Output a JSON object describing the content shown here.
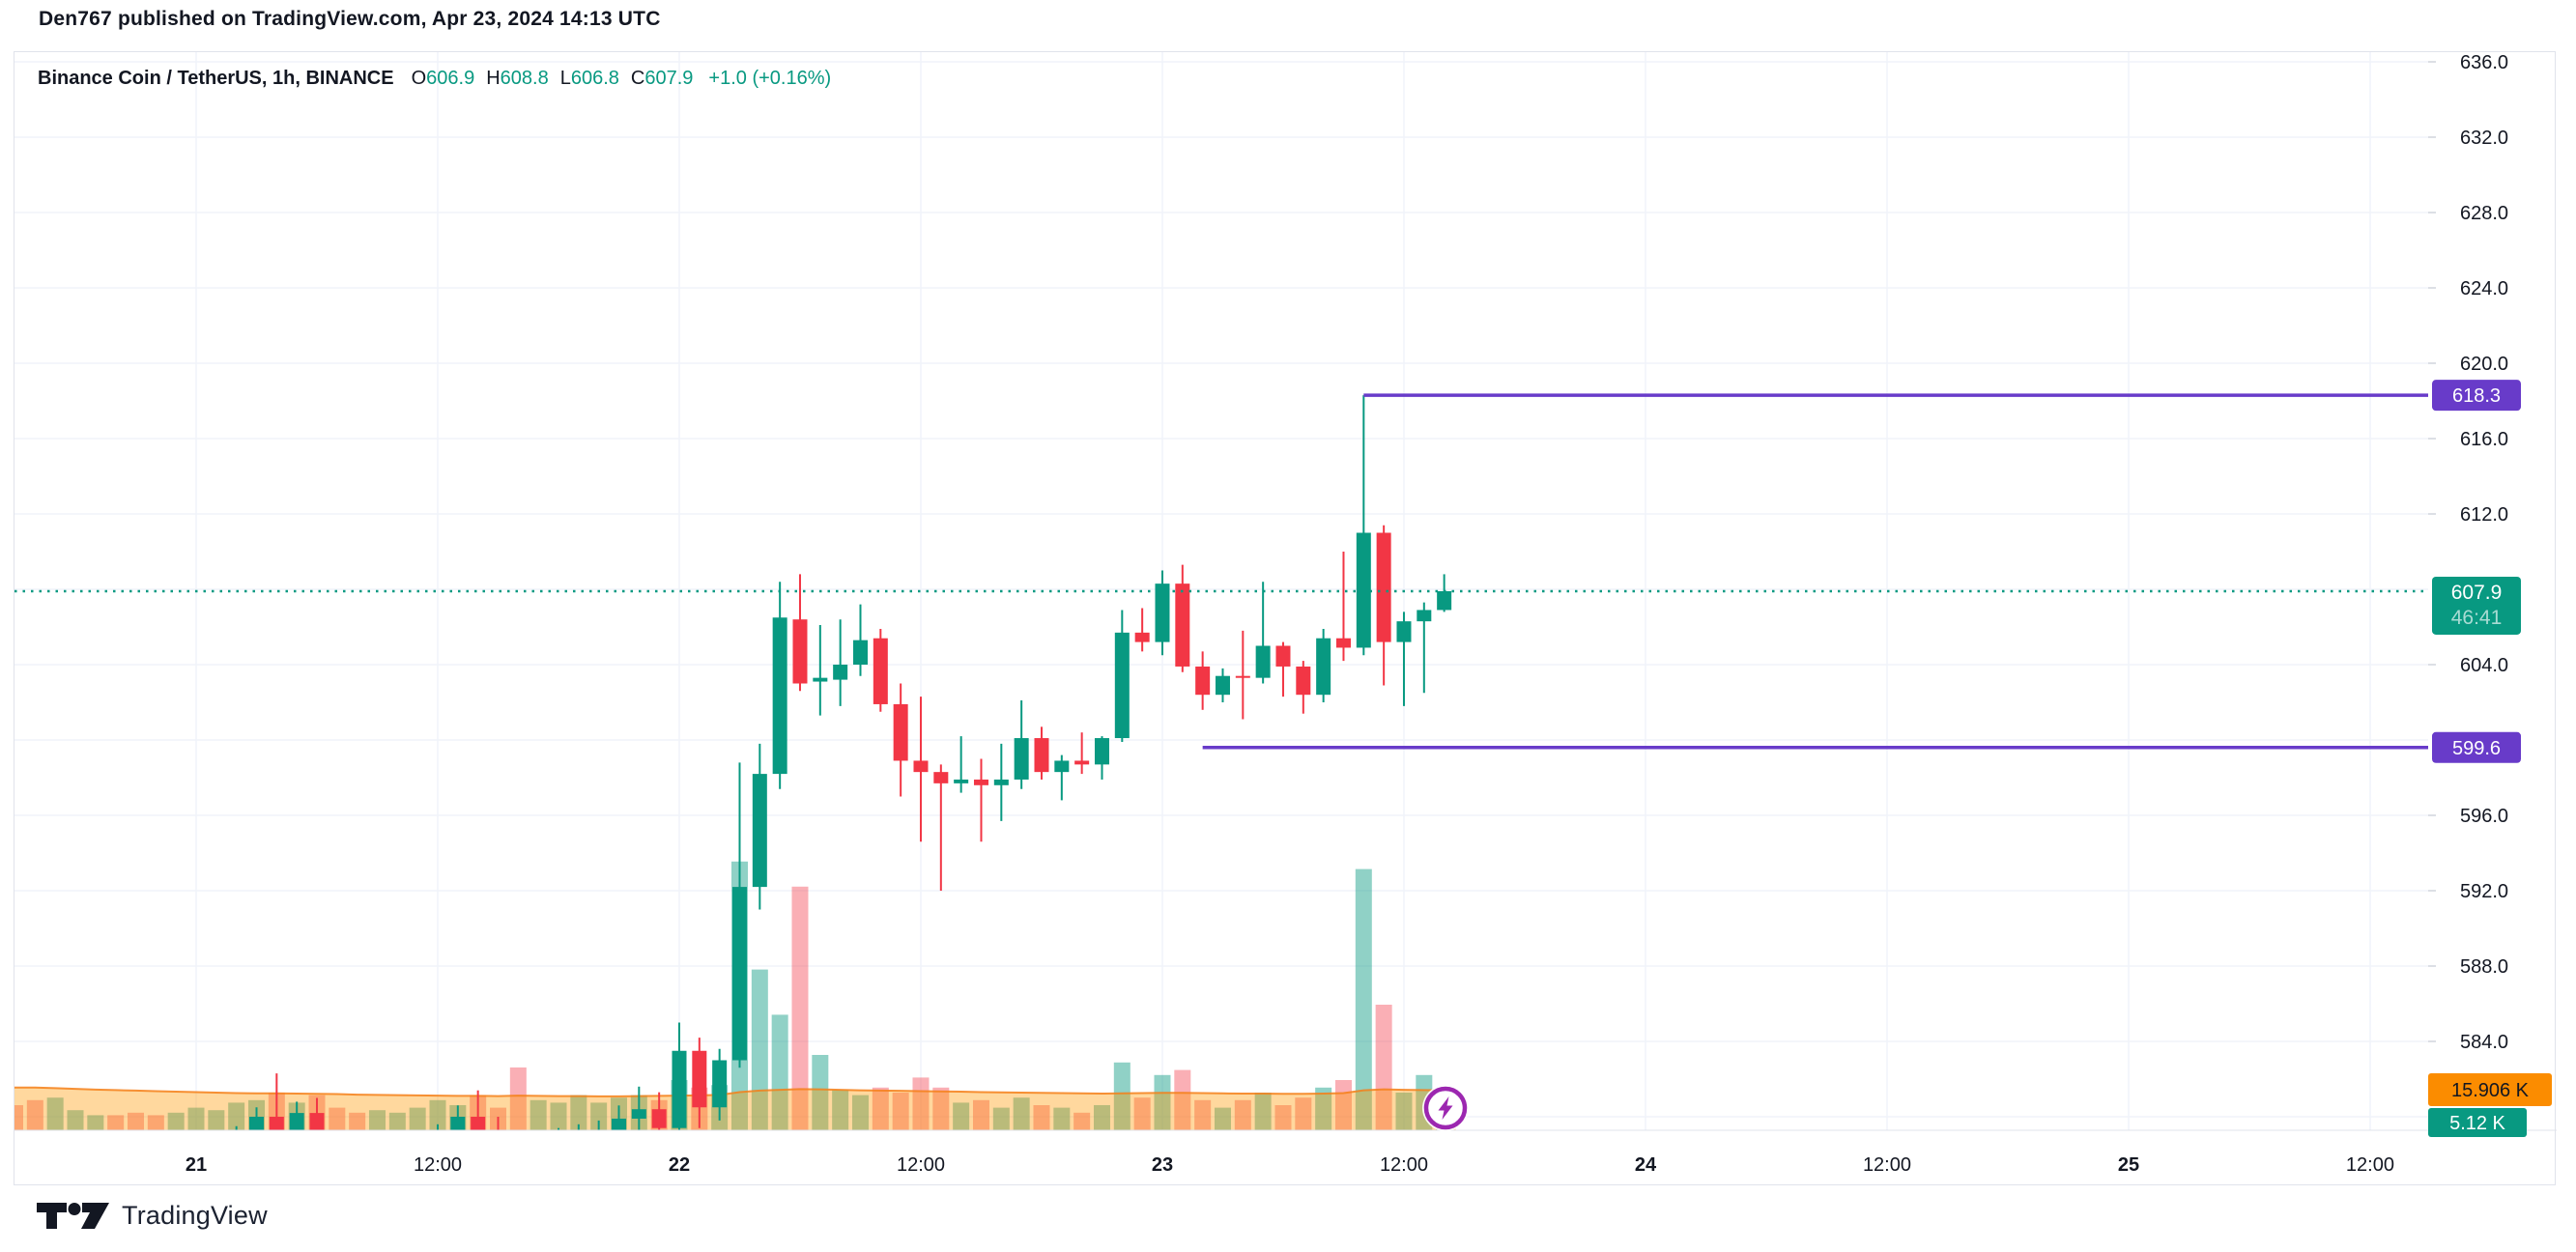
{
  "header": {
    "attribution": "Den767 published on TradingView.com, Apr 23, 2024 14:13 UTC"
  },
  "footer": {
    "brand": "TradingView"
  },
  "legend": {
    "symbol": "Binance Coin / TetherUS, 1h, BINANCE",
    "ohlc": [
      {
        "label": "O",
        "value": "606.9"
      },
      {
        "label": "H",
        "value": "608.8"
      },
      {
        "label": "L",
        "value": "606.8"
      },
      {
        "label": "C",
        "value": "607.9"
      }
    ],
    "change": "+1.0 (+0.16%)"
  },
  "colors": {
    "up": "#089981",
    "down": "#F23645",
    "volume_up": "rgba(8,153,129,0.45)",
    "volume_down": "rgba(242,54,69,0.40)",
    "volume_ma_line": "#F57F17",
    "volume_ma_area": "rgba(255,152,0,0.38)",
    "level_purple": "#683BC9",
    "badge_last_price": "#089981",
    "badge_volume_ma": "#FB8C00",
    "badge_volume": "#089981",
    "grid": "#F0F3FA",
    "border": "#E0E3EB",
    "text": "#131722",
    "button_ring": "#9C27B0"
  },
  "chart_data": {
    "type": "candlestick",
    "title": "Binance Coin / TetherUS",
    "interval": "1h",
    "exchange": "BINANCE",
    "price_axis_labels": [
      "636.0",
      "632.0",
      "628.0",
      "624.0",
      "620.0",
      "616.0",
      "612.0",
      "604.0",
      "596.0",
      "592.0",
      "588.0",
      "584.0"
    ],
    "price_axis_values": [
      636.0,
      632.0,
      628.0,
      624.0,
      620.0,
      616.0,
      612.0,
      604.0,
      596.0,
      592.0,
      588.0,
      584.0
    ],
    "grid_prices": [
      636,
      632,
      628,
      624,
      620,
      616,
      612,
      608,
      604,
      600,
      596,
      592,
      588,
      584,
      580
    ],
    "time_ticks": [
      {
        "text": "21",
        "candle_index": 9,
        "major": true
      },
      {
        "text": "12:00",
        "candle_index": 21,
        "major": false
      },
      {
        "text": "22",
        "candle_index": 33,
        "major": true
      },
      {
        "text": "12:00",
        "candle_index": 45,
        "major": false
      },
      {
        "text": "23",
        "candle_index": 57,
        "major": true
      },
      {
        "text": "12:00",
        "candle_index": 69,
        "major": false
      },
      {
        "text": "24",
        "candle_index": 81,
        "major": true
      },
      {
        "text": "12:00",
        "candle_index": 93,
        "major": false
      },
      {
        "text": "25",
        "candle_index": 105,
        "major": true
      },
      {
        "text": "12:00",
        "candle_index": 117,
        "major": false
      }
    ],
    "levels": [
      {
        "price": 618.3,
        "label": "618.3",
        "start_candle_index": 67
      },
      {
        "price": 599.6,
        "label": "599.6",
        "start_candle_index": 59
      }
    ],
    "last_price": {
      "value": 607.9,
      "label": "607.9",
      "countdown": "46:41"
    },
    "volume_badges": {
      "ma_label": "15.906 K",
      "ma_value": 15.906,
      "last_label": "5.12 K",
      "last_value": 5.12
    },
    "candles": [
      [
        "Apr 20 15:00",
        577.5,
        578.2,
        576.0,
        576.8,
        10
      ],
      [
        "Apr 20 16:00",
        576.8,
        577.5,
        575.5,
        576.2,
        12
      ],
      [
        "Apr 20 17:00",
        576.2,
        577.0,
        575.0,
        576.5,
        13
      ],
      [
        "Apr 20 18:00",
        576.5,
        578.0,
        576.0,
        577.2,
        8
      ],
      [
        "Apr 20 19:00",
        577.2,
        578.5,
        576.5,
        577.8,
        6
      ],
      [
        "Apr 20 20:00",
        577.8,
        578.3,
        576.8,
        577.0,
        6
      ],
      [
        "Apr 20 21:00",
        577.0,
        577.8,
        575.8,
        576.4,
        7
      ],
      [
        "Apr 20 22:00",
        576.4,
        577.2,
        575.2,
        575.8,
        6
      ],
      [
        "Apr 20 23:00",
        575.8,
        577.0,
        575.0,
        576.6,
        7
      ],
      [
        "Apr 21 00:00",
        576.6,
        578.0,
        576.0,
        577.4,
        9
      ],
      [
        "Apr 21 01:00",
        577.4,
        578.8,
        576.8,
        578.2,
        8
      ],
      [
        "Apr 21 02:00",
        578.2,
        579.5,
        577.5,
        579.0,
        11
      ],
      [
        "Apr 21 03:00",
        579.0,
        580.5,
        577.5,
        580.0,
        12
      ],
      [
        "Apr 21 04:00",
        580.0,
        582.3,
        578.0,
        578.6,
        15
      ],
      [
        "Apr 21 05:00",
        578.6,
        580.8,
        577.8,
        580.2,
        11
      ],
      [
        "Apr 21 06:00",
        580.2,
        581.0,
        577.5,
        578.0,
        14
      ],
      [
        "Apr 21 07:00",
        578.0,
        579.0,
        576.5,
        577.0,
        9
      ],
      [
        "Apr 21 08:00",
        577.0,
        578.0,
        575.8,
        576.5,
        7
      ],
      [
        "Apr 21 09:00",
        576.5,
        577.5,
        575.5,
        577.0,
        8
      ],
      [
        "Apr 21 10:00",
        577.0,
        578.2,
        576.2,
        577.8,
        7
      ],
      [
        "Apr 21 11:00",
        577.8,
        579.0,
        576.8,
        578.4,
        9
      ],
      [
        "Apr 21 12:00",
        578.4,
        579.6,
        577.4,
        579.0,
        12
      ],
      [
        "Apr 21 13:00",
        579.0,
        580.6,
        578.2,
        580.0,
        10
      ],
      [
        "Apr 21 14:00",
        580.0,
        581.4,
        578.4,
        578.9,
        14
      ],
      [
        "Apr 21 15:00",
        578.9,
        580.0,
        577.5,
        578.3,
        9
      ],
      [
        "Apr 21 16:00",
        578.3,
        579.2,
        577.0,
        577.6,
        25
      ],
      [
        "Apr 21 17:00",
        577.6,
        578.6,
        576.6,
        578.0,
        12
      ],
      [
        "Apr 21 18:00",
        578.0,
        579.4,
        577.2,
        578.8,
        11
      ],
      [
        "Apr 21 19:00",
        578.8,
        579.6,
        577.8,
        579.0,
        14
      ],
      [
        "Apr 21 20:00",
        579.0,
        579.8,
        577.8,
        579.2,
        11
      ],
      [
        "Apr 21 21:00",
        579.2,
        580.6,
        578.4,
        579.9,
        13
      ],
      [
        "Apr 21 22:00",
        579.9,
        581.6,
        578.8,
        580.4,
        14
      ],
      [
        "Apr 21 23:00",
        580.4,
        581.3,
        578.6,
        579.4,
        12
      ],
      [
        "Apr 22 00:00",
        579.4,
        585.0,
        579.0,
        583.5,
        20
      ],
      [
        "Apr 22 01:00",
        583.5,
        584.2,
        579.4,
        580.5,
        17
      ],
      [
        "Apr 22 02:00",
        580.5,
        583.6,
        579.8,
        583.0,
        18
      ],
      [
        "Apr 22 03:00",
        583.0,
        598.8,
        582.6,
        592.2,
        107
      ],
      [
        "Apr 22 04:00",
        592.2,
        599.8,
        591.0,
        598.2,
        64
      ],
      [
        "Apr 22 05:00",
        598.2,
        608.4,
        597.4,
        606.5,
        46
      ],
      [
        "Apr 22 06:00",
        606.4,
        608.8,
        602.6,
        603.0,
        97
      ],
      [
        "Apr 22 07:00",
        603.1,
        606.1,
        601.3,
        603.3,
        30
      ],
      [
        "Apr 22 08:00",
        603.2,
        606.4,
        601.8,
        604.0,
        16
      ],
      [
        "Apr 22 09:00",
        604.0,
        607.2,
        603.4,
        605.3,
        14
      ],
      [
        "Apr 22 10:00",
        605.4,
        605.9,
        601.5,
        601.9,
        17
      ],
      [
        "Apr 22 11:00",
        601.9,
        603.0,
        597.0,
        598.9,
        15
      ],
      [
        "Apr 22 12:00",
        598.9,
        602.3,
        594.6,
        598.3,
        21
      ],
      [
        "Apr 22 13:00",
        598.3,
        598.7,
        592.0,
        597.7,
        17
      ],
      [
        "Apr 22 14:00",
        597.7,
        600.2,
        597.2,
        597.9,
        11
      ],
      [
        "Apr 22 15:00",
        597.9,
        599.0,
        594.6,
        597.6,
        12
      ],
      [
        "Apr 22 16:00",
        597.6,
        599.8,
        595.7,
        597.9,
        9
      ],
      [
        "Apr 22 17:00",
        597.9,
        602.1,
        597.4,
        600.1,
        13
      ],
      [
        "Apr 22 18:00",
        600.1,
        600.7,
        597.9,
        598.3,
        10
      ],
      [
        "Apr 22 19:00",
        598.3,
        599.2,
        596.8,
        598.9,
        9
      ],
      [
        "Apr 22 20:00",
        598.9,
        600.4,
        598.2,
        598.7,
        7
      ],
      [
        "Apr 22 21:00",
        598.7,
        600.2,
        597.9,
        600.1,
        10
      ],
      [
        "Apr 22 22:00",
        600.1,
        606.9,
        599.9,
        605.7,
        27
      ],
      [
        "Apr 22 23:00",
        605.7,
        607.0,
        604.7,
        605.2,
        13
      ],
      [
        "Apr 23 00:00",
        605.2,
        609.0,
        604.5,
        608.3,
        22
      ],
      [
        "Apr 23 01:00",
        608.3,
        609.3,
        603.6,
        603.9,
        24
      ],
      [
        "Apr 23 02:00",
        603.9,
        604.7,
        601.6,
        602.4,
        12
      ],
      [
        "Apr 23 03:00",
        602.4,
        603.8,
        602.0,
        603.4,
        9
      ],
      [
        "Apr 23 04:00",
        603.4,
        605.8,
        601.1,
        603.3,
        12
      ],
      [
        "Apr 23 05:00",
        603.3,
        608.4,
        603.0,
        605.0,
        15
      ],
      [
        "Apr 23 06:00",
        605.0,
        605.2,
        602.3,
        603.9,
        10
      ],
      [
        "Apr 23 07:00",
        603.9,
        604.2,
        601.4,
        602.4,
        13
      ],
      [
        "Apr 23 08:00",
        602.4,
        605.9,
        602.0,
        605.4,
        17
      ],
      [
        "Apr 23 09:00",
        605.4,
        610.0,
        604.2,
        604.9,
        20
      ],
      [
        "Apr 23 10:00",
        604.9,
        618.3,
        604.5,
        611.0,
        104
      ],
      [
        "Apr 23 11:00",
        611.0,
        611.4,
        602.9,
        605.2,
        50
      ],
      [
        "Apr 23 12:00",
        605.2,
        606.8,
        601.8,
        606.3,
        15
      ],
      [
        "Apr 23 13:00",
        606.3,
        607.3,
        602.5,
        606.9,
        22
      ],
      [
        "Apr 23 14:00",
        606.9,
        608.8,
        606.8,
        607.9,
        5.12
      ]
    ],
    "volume_ma": [
      17.0,
      17.0,
      16.8,
      16.5,
      16.2,
      16.0,
      15.8,
      15.6,
      15.4,
      15.2,
      15.0,
      14.8,
      14.7,
      14.7,
      14.6,
      14.5,
      14.4,
      14.2,
      14.1,
      14.0,
      13.9,
      13.8,
      13.7,
      13.7,
      13.6,
      13.8,
      13.7,
      13.6,
      13.6,
      13.5,
      13.5,
      13.6,
      13.7,
      13.8,
      13.9,
      14.1,
      15.2,
      15.8,
      16.1,
      16.4,
      16.3,
      16.1,
      15.9,
      15.8,
      15.7,
      15.6,
      15.5,
      15.4,
      15.2,
      15.1,
      15.0,
      14.9,
      14.8,
      14.7,
      14.6,
      14.7,
      14.8,
      14.9,
      14.9,
      14.8,
      14.7,
      14.6,
      14.6,
      14.5,
      14.5,
      14.6,
      14.8,
      15.9,
      16.3,
      16.1,
      16.0,
      15.906
    ]
  }
}
